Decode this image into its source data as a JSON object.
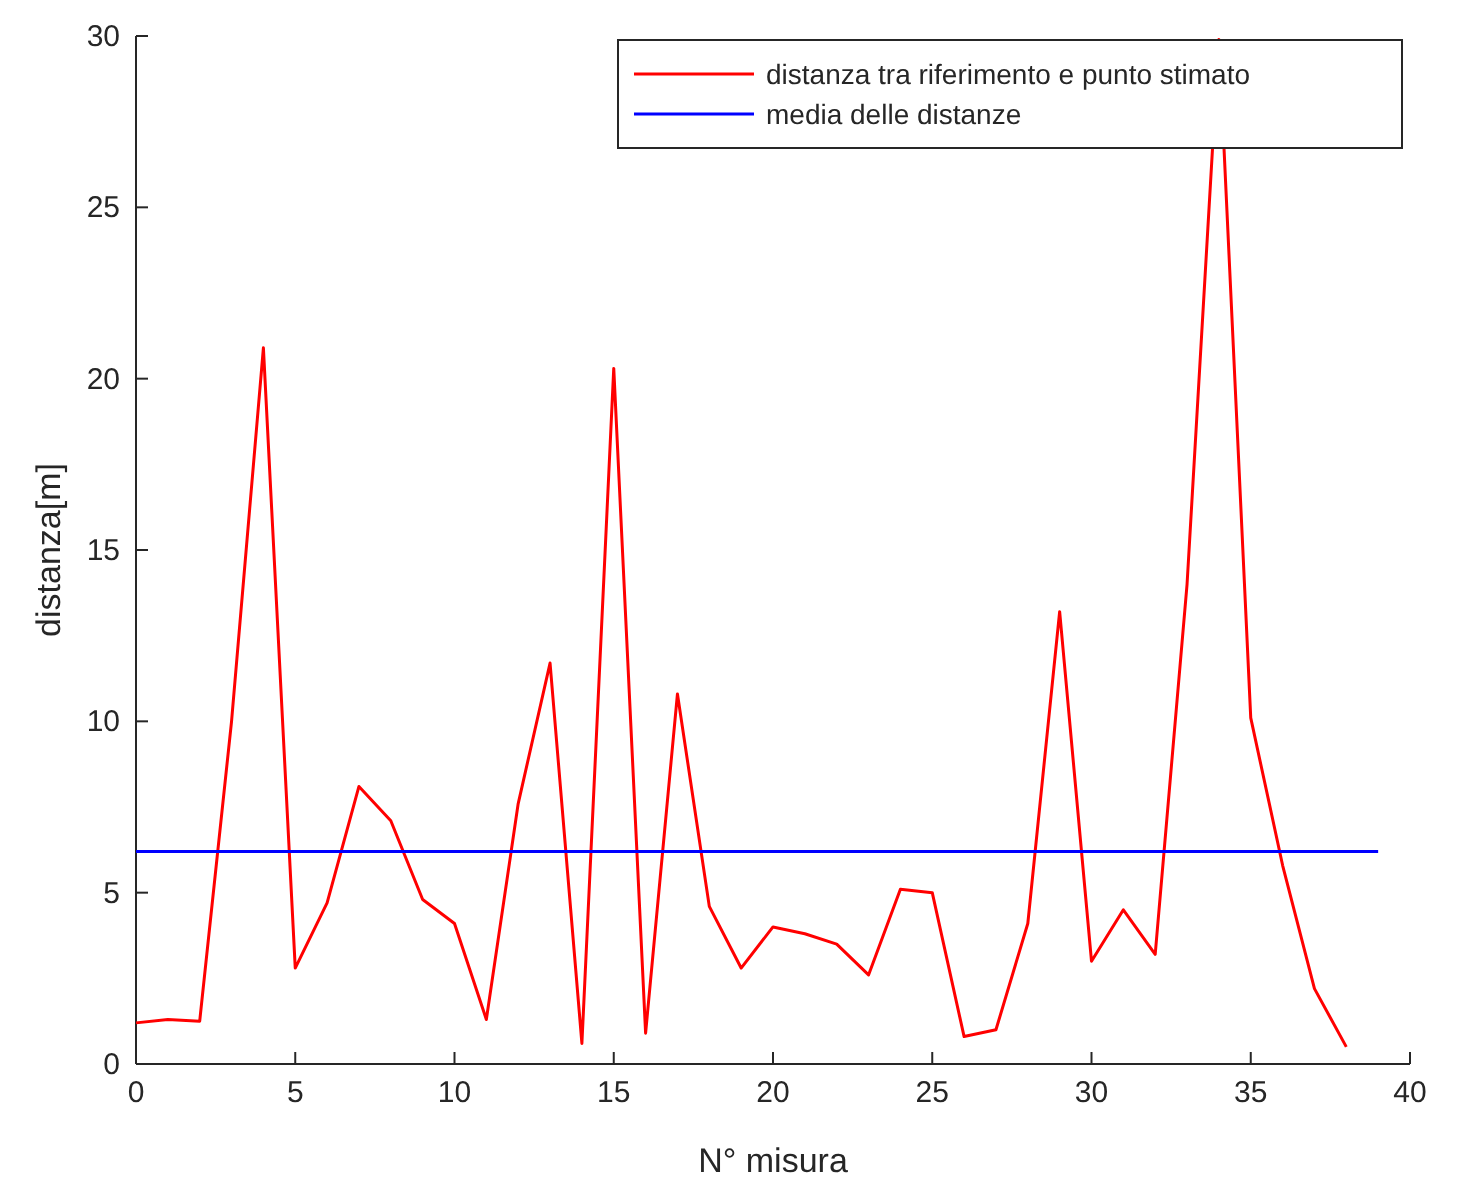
{
  "chart_data": {
    "type": "line",
    "xlabel": "N° misura",
    "ylabel": "distanza[m]",
    "xlim": [
      0,
      40
    ],
    "xticks": [
      0,
      5,
      10,
      15,
      20,
      25,
      30,
      35,
      40
    ],
    "ylim": [
      0,
      30
    ],
    "yticks": [
      0,
      5,
      10,
      15,
      20,
      25,
      30
    ],
    "grid": false,
    "legend": "top right",
    "series": [
      {
        "name": "distanza tra riferimento e punto stimato",
        "color": "#ff0000",
        "x": [
          0,
          1,
          2,
          3,
          4,
          5,
          6,
          7,
          8,
          9,
          10,
          11,
          12,
          13,
          14,
          15,
          16,
          17,
          18,
          19,
          20,
          21,
          22,
          23,
          24,
          25,
          26,
          27,
          28,
          29,
          30,
          31,
          32,
          33,
          34,
          35,
          36,
          37,
          38
        ],
        "values": [
          1.2,
          1.3,
          1.25,
          10,
          20.9,
          2.8,
          4.7,
          8.1,
          7.1,
          4.8,
          4.1,
          1.3,
          7.6,
          11.7,
          0.6,
          20.3,
          0.9,
          10.8,
          4.6,
          2.8,
          4.0,
          3.8,
          3.5,
          2.6,
          5.1,
          5.0,
          0.8,
          1.0,
          4.1,
          13.2,
          3.0,
          4.5,
          3.2,
          14,
          29.9,
          10.1,
          5.8,
          2.2,
          0.5
        ]
      },
      {
        "name": "media delle distanze",
        "color": "#0000ff",
        "x": [
          0,
          39
        ],
        "values": [
          6.2,
          6.2
        ]
      }
    ]
  }
}
